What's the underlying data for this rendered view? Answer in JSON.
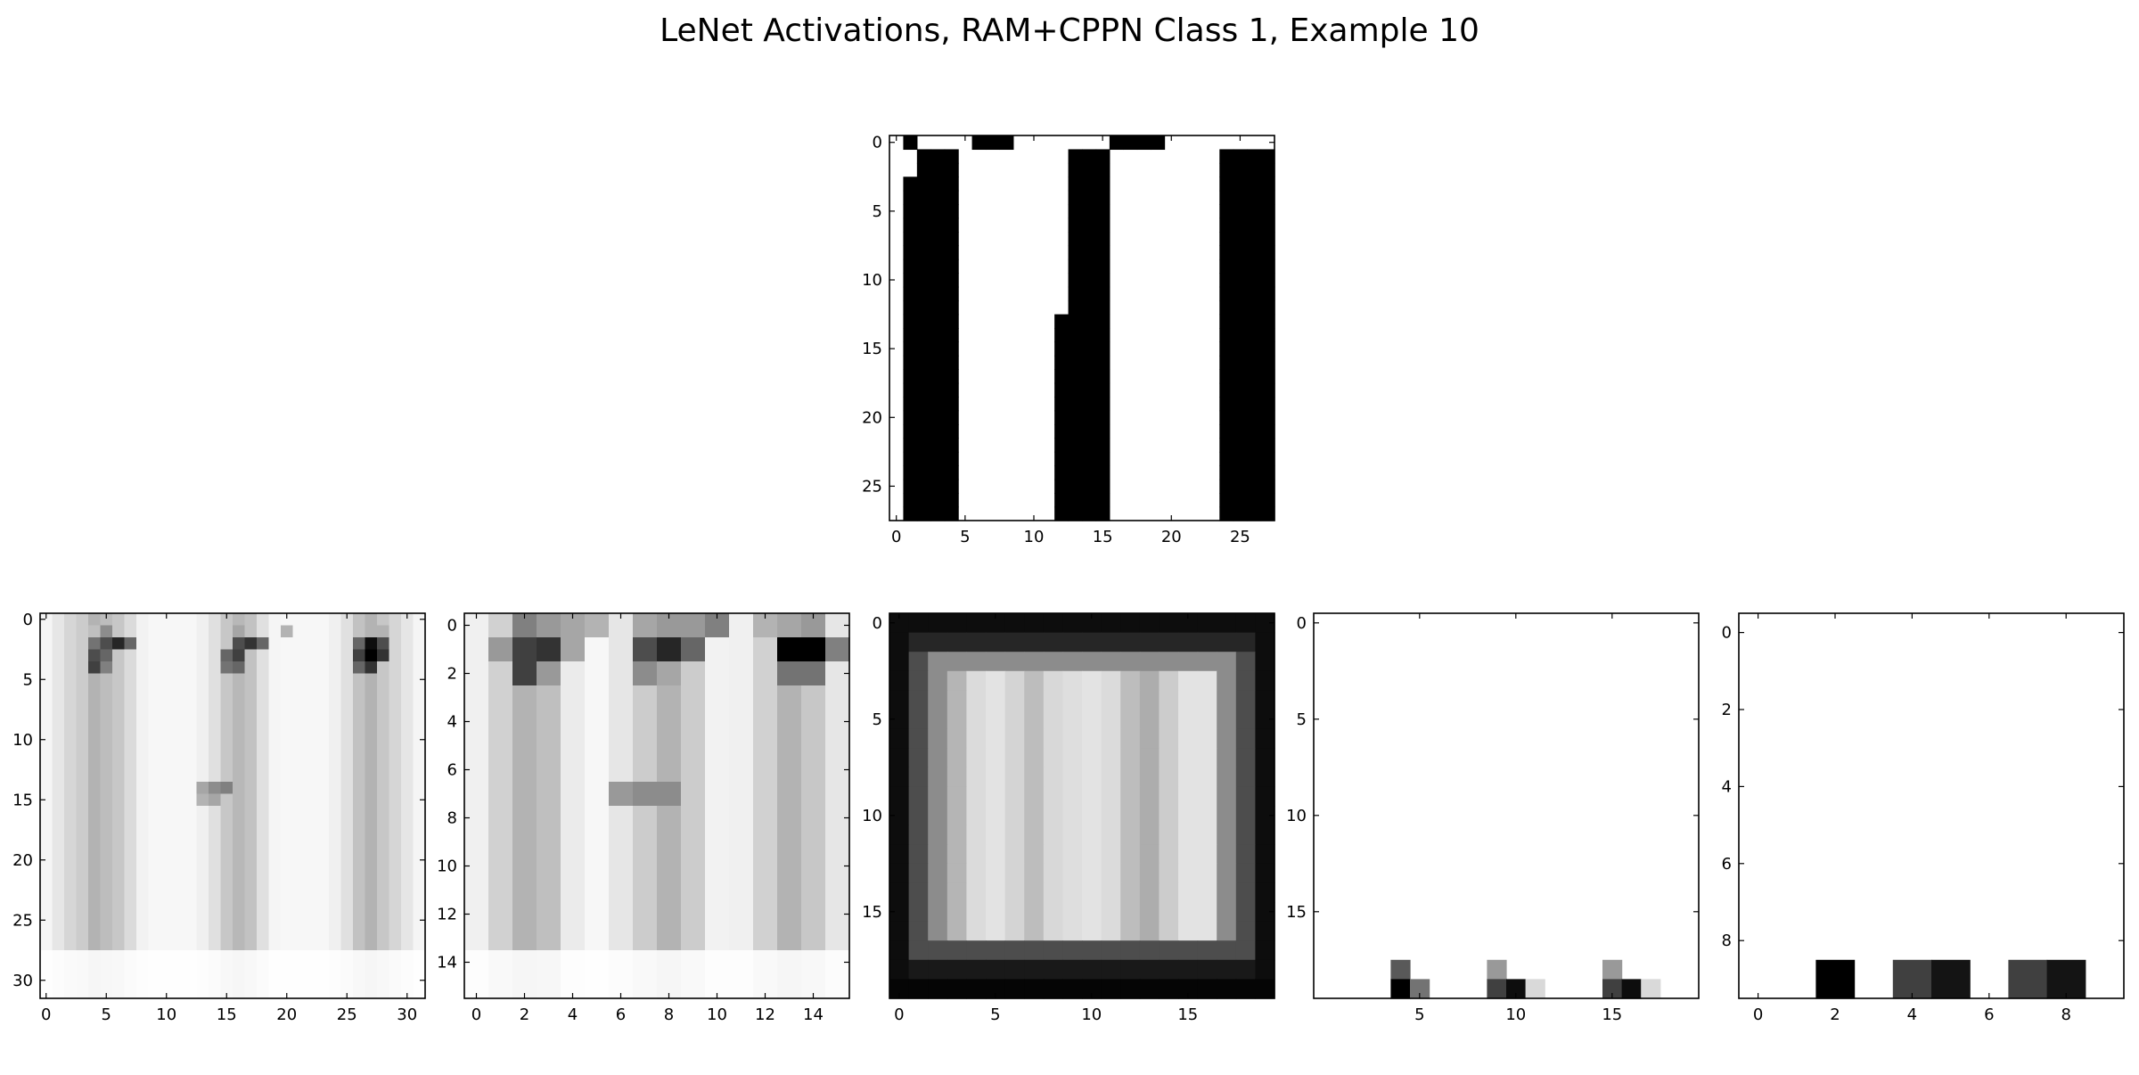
{
  "title": "LeNet Activations, RAM+CPPN Class 1, Example 10",
  "chart_data": [
    {
      "type": "heatmap",
      "name": "input",
      "cmap": "gray_r",
      "vmin": 0,
      "vmax": 1,
      "rows": 28,
      "cols": 28,
      "xticks": [
        0,
        5,
        10,
        15,
        20,
        25
      ],
      "yticks": [
        0,
        5,
        10,
        15,
        20,
        25
      ],
      "col_profile": [
        0,
        1,
        1,
        1,
        1,
        0,
        0,
        0,
        0,
        0,
        0,
        0,
        1,
        1,
        1,
        1,
        0,
        0,
        0,
        0,
        0,
        0,
        0,
        0,
        1,
        1,
        1,
        1
      ],
      "top_row": [
        0,
        1,
        0,
        0,
        0,
        0,
        1,
        1,
        1,
        0,
        0,
        0,
        0,
        0,
        0,
        0,
        1,
        1,
        1,
        1,
        0,
        0,
        0,
        0,
        0,
        0,
        0,
        0
      ],
      "col_start_row": [
        0,
        3,
        1,
        1,
        1,
        0,
        0,
        0,
        0,
        0,
        0,
        0,
        13,
        1,
        1,
        1,
        0,
        0,
        0,
        0,
        0,
        0,
        0,
        0,
        1,
        1,
        1,
        1
      ]
    },
    {
      "type": "heatmap",
      "name": "layer-1",
      "cmap": "gray_r",
      "vmin": 0,
      "vmax": 1,
      "rows": 32,
      "cols": 32,
      "xticks": [
        0,
        5,
        10,
        15,
        20,
        25,
        30
      ],
      "yticks": [
        0,
        5,
        10,
        15,
        20,
        25,
        30
      ],
      "col_profile": [
        0.04,
        0.1,
        0.16,
        0.2,
        0.3,
        0.26,
        0.22,
        0.14,
        0.05,
        0.03,
        0.03,
        0.03,
        0.03,
        0.06,
        0.12,
        0.22,
        0.28,
        0.24,
        0.12,
        0.04,
        0.03,
        0.03,
        0.03,
        0.03,
        0.06,
        0.12,
        0.24,
        0.3,
        0.22,
        0.16,
        0.1,
        0.04
      ],
      "highlights": [
        {
          "row": 1,
          "col": 4,
          "value": 0.25
        },
        {
          "row": 1,
          "col": 5,
          "value": 0.45
        },
        {
          "row": 1,
          "col": 16,
          "value": 0.35
        },
        {
          "row": 1,
          "col": 20,
          "value": 0.3
        },
        {
          "row": 1,
          "col": 28,
          "value": 0.3
        },
        {
          "row": 2,
          "col": 4,
          "value": 0.55
        },
        {
          "row": 2,
          "col": 5,
          "value": 0.7
        },
        {
          "row": 2,
          "col": 6,
          "value": 0.85
        },
        {
          "row": 2,
          "col": 7,
          "value": 0.6
        },
        {
          "row": 2,
          "col": 16,
          "value": 0.7
        },
        {
          "row": 2,
          "col": 17,
          "value": 0.8
        },
        {
          "row": 2,
          "col": 18,
          "value": 0.6
        },
        {
          "row": 2,
          "col": 26,
          "value": 0.6
        },
        {
          "row": 2,
          "col": 27,
          "value": 0.95
        },
        {
          "row": 2,
          "col": 28,
          "value": 0.7
        },
        {
          "row": 3,
          "col": 4,
          "value": 0.7
        },
        {
          "row": 3,
          "col": 5,
          "value": 0.6
        },
        {
          "row": 3,
          "col": 15,
          "value": 0.6
        },
        {
          "row": 3,
          "col": 16,
          "value": 0.75
        },
        {
          "row": 3,
          "col": 26,
          "value": 0.75
        },
        {
          "row": 3,
          "col": 27,
          "value": 1.0
        },
        {
          "row": 3,
          "col": 28,
          "value": 0.8
        },
        {
          "row": 4,
          "col": 4,
          "value": 0.75
        },
        {
          "row": 4,
          "col": 5,
          "value": 0.5
        },
        {
          "row": 4,
          "col": 15,
          "value": 0.55
        },
        {
          "row": 4,
          "col": 16,
          "value": 0.6
        },
        {
          "row": 4,
          "col": 26,
          "value": 0.6
        },
        {
          "row": 4,
          "col": 27,
          "value": 0.8
        },
        {
          "row": 14,
          "col": 13,
          "value": 0.35
        },
        {
          "row": 14,
          "col": 14,
          "value": 0.45
        },
        {
          "row": 14,
          "col": 15,
          "value": 0.5
        },
        {
          "row": 15,
          "col": 13,
          "value": 0.3
        },
        {
          "row": 15,
          "col": 14,
          "value": 0.35
        }
      ]
    },
    {
      "type": "heatmap",
      "name": "layer-2",
      "cmap": "gray_r",
      "vmin": 0,
      "vmax": 1,
      "rows": 16,
      "cols": 16,
      "xticks": [
        0,
        2,
        4,
        6,
        8,
        10,
        12,
        14
      ],
      "yticks": [
        0,
        2,
        4,
        6,
        8,
        10,
        12,
        14
      ],
      "col_profile": [
        0.06,
        0.18,
        0.3,
        0.25,
        0.08,
        0.03,
        0.1,
        0.2,
        0.3,
        0.2,
        0.05,
        0.06,
        0.18,
        0.3,
        0.22,
        0.1
      ],
      "highlights": [
        {
          "row": 0,
          "col": 2,
          "value": 0.5
        },
        {
          "row": 0,
          "col": 3,
          "value": 0.4
        },
        {
          "row": 0,
          "col": 4,
          "value": 0.35
        },
        {
          "row": 0,
          "col": 5,
          "value": 0.3
        },
        {
          "row": 0,
          "col": 7,
          "value": 0.35
        },
        {
          "row": 0,
          "col": 8,
          "value": 0.4
        },
        {
          "row": 0,
          "col": 9,
          "value": 0.4
        },
        {
          "row": 0,
          "col": 10,
          "value": 0.5
        },
        {
          "row": 0,
          "col": 12,
          "value": 0.3
        },
        {
          "row": 0,
          "col": 13,
          "value": 0.35
        },
        {
          "row": 0,
          "col": 14,
          "value": 0.4
        },
        {
          "row": 1,
          "col": 1,
          "value": 0.4
        },
        {
          "row": 1,
          "col": 2,
          "value": 0.75
        },
        {
          "row": 1,
          "col": 3,
          "value": 0.8
        },
        {
          "row": 1,
          "col": 4,
          "value": 0.35
        },
        {
          "row": 1,
          "col": 7,
          "value": 0.7
        },
        {
          "row": 1,
          "col": 8,
          "value": 0.85
        },
        {
          "row": 1,
          "col": 9,
          "value": 0.6
        },
        {
          "row": 1,
          "col": 13,
          "value": 1.0
        },
        {
          "row": 1,
          "col": 14,
          "value": 1.0
        },
        {
          "row": 1,
          "col": 15,
          "value": 0.5
        },
        {
          "row": 2,
          "col": 2,
          "value": 0.75
        },
        {
          "row": 2,
          "col": 3,
          "value": 0.4
        },
        {
          "row": 2,
          "col": 7,
          "value": 0.45
        },
        {
          "row": 2,
          "col": 8,
          "value": 0.35
        },
        {
          "row": 2,
          "col": 13,
          "value": 0.55
        },
        {
          "row": 2,
          "col": 14,
          "value": 0.55
        },
        {
          "row": 7,
          "col": 6,
          "value": 0.4
        },
        {
          "row": 7,
          "col": 7,
          "value": 0.45
        },
        {
          "row": 7,
          "col": 8,
          "value": 0.45
        }
      ]
    },
    {
      "type": "heatmap",
      "name": "layer-3",
      "cmap": "gray_r",
      "vmin": 0,
      "vmax": 1,
      "rows": 20,
      "cols": 20,
      "xticks": [
        0,
        5,
        10,
        15
      ],
      "yticks": [
        0,
        5,
        10,
        15
      ],
      "border_value": 0.95,
      "interior_value": 0.08,
      "col_profile": [
        0.95,
        0.8,
        0.55,
        0.35,
        0.1,
        0.05,
        0.15,
        0.3,
        0.12,
        0.08,
        0.05,
        0.1,
        0.3,
        0.4,
        0.2,
        0.05,
        0.05,
        0.1,
        0.5,
        0.9
      ]
    },
    {
      "type": "heatmap",
      "name": "layer-4",
      "cmap": "gray_r",
      "vmin": 0,
      "vmax": 1,
      "rows": 20,
      "cols": 20,
      "xticks": [
        5,
        10,
        15
      ],
      "yticks": [
        0,
        5,
        10,
        15
      ],
      "cells": [
        {
          "row": 18,
          "col": 4,
          "value": 0.65
        },
        {
          "row": 19,
          "col": 4,
          "value": 1.0
        },
        {
          "row": 19,
          "col": 5,
          "value": 0.55
        },
        {
          "row": 18,
          "col": 9,
          "value": 0.4
        },
        {
          "row": 19,
          "col": 9,
          "value": 0.75
        },
        {
          "row": 19,
          "col": 10,
          "value": 0.95
        },
        {
          "row": 19,
          "col": 11,
          "value": 0.15
        },
        {
          "row": 18,
          "col": 15,
          "value": 0.4
        },
        {
          "row": 19,
          "col": 15,
          "value": 0.75
        },
        {
          "row": 19,
          "col": 16,
          "value": 0.95
        },
        {
          "row": 19,
          "col": 17,
          "value": 0.15
        }
      ]
    },
    {
      "type": "heatmap",
      "name": "layer-5",
      "cmap": "gray_r",
      "vmin": 0,
      "vmax": 1,
      "rows": 10,
      "cols": 10,
      "xticks": [
        0,
        2,
        4,
        6,
        8
      ],
      "yticks": [
        0,
        2,
        4,
        6,
        8
      ],
      "cells": [
        {
          "row": 9,
          "col": 2,
          "value": 1.0
        },
        {
          "row": 9,
          "col": 4,
          "value": 0.75
        },
        {
          "row": 9,
          "col": 5,
          "value": 0.92
        },
        {
          "row": 9,
          "col": 7,
          "value": 0.75
        },
        {
          "row": 9,
          "col": 8,
          "value": 0.92
        }
      ]
    }
  ]
}
